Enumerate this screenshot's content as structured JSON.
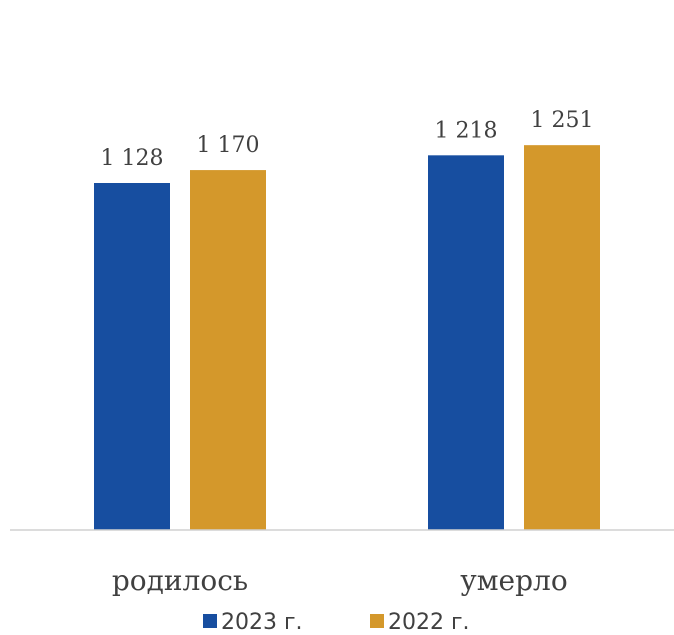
{
  "chart_data": {
    "type": "bar",
    "categories": [
      "родилось",
      "умерло"
    ],
    "series": [
      {
        "name": "2023 г.",
        "values": [
          1128,
          1218
        ],
        "labels": [
          "1 128",
          "1 218"
        ],
        "color": "#174ea0"
      },
      {
        "name": "2022 г.",
        "values": [
          1170,
          1251
        ],
        "labels": [
          "1 170",
          "1 251"
        ],
        "color": "#d4982b"
      }
    ],
    "ylim": [
      0,
      1300
    ],
    "grid": false,
    "legend": "bottom"
  }
}
